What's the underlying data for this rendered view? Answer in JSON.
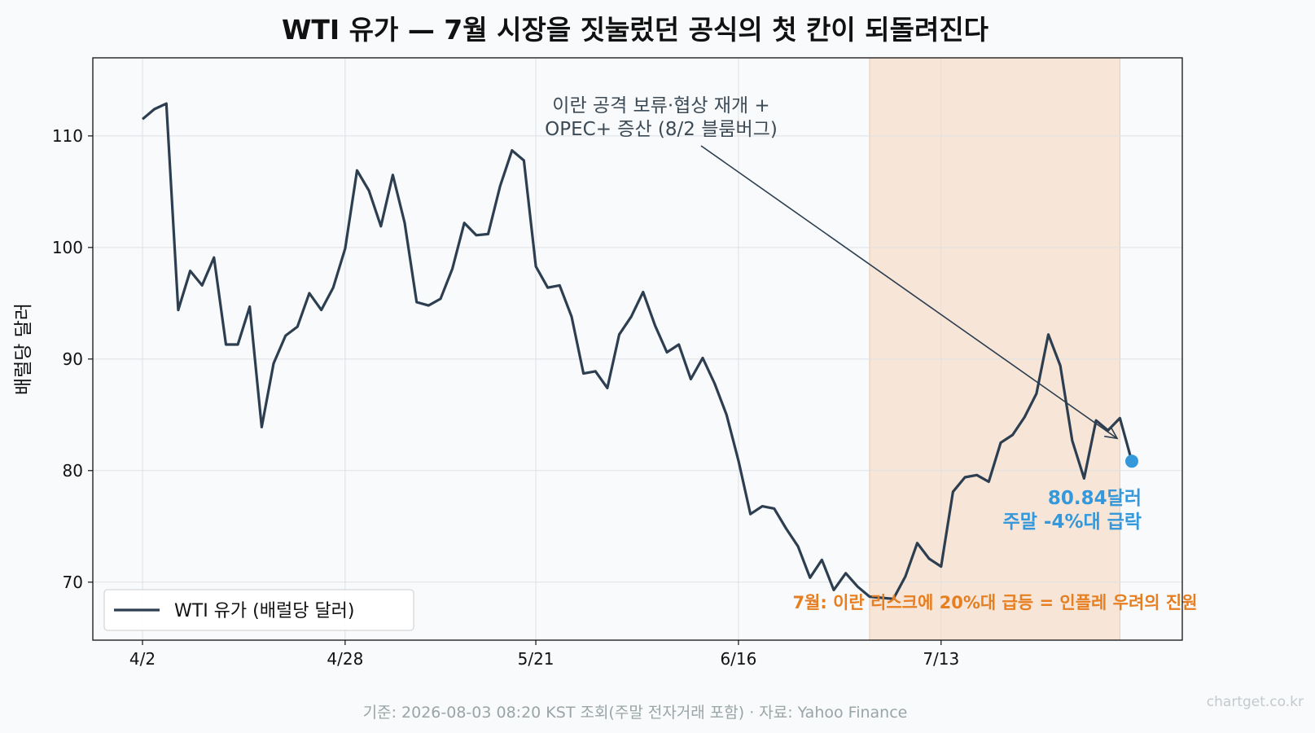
{
  "chart_data": {
    "type": "line",
    "title": "WTI 유가 — 7월 시장을 짓눌렀던 공식의 첫 칸이 되돌려진다",
    "ylabel": "배럴당 달러",
    "xlabel": "",
    "ylim": [
      64.8,
      117
    ],
    "y_ticks": [
      "70",
      "80",
      "90",
      "100",
      "110"
    ],
    "y_tick_values": [
      70,
      80,
      90,
      100,
      110
    ],
    "x_ticks": [
      "4/2",
      "4/28",
      "5/21",
      "6/16",
      "7/13"
    ],
    "x_tick_indices": [
      0,
      17,
      33,
      50,
      67
    ],
    "grid": true,
    "legend_position": "lower-left",
    "series": [
      {
        "name": "WTI 유가 (배럴당 달러)",
        "color": "#2c3e50",
        "values": [
          111.5,
          112.4,
          112.9,
          94.4,
          97.9,
          96.6,
          99.1,
          91.3,
          91.3,
          94.7,
          83.9,
          89.6,
          92.1,
          92.9,
          95.9,
          94.4,
          96.4,
          99.9,
          106.9,
          105.1,
          101.9,
          106.5,
          102.2,
          95.1,
          94.8,
          95.4,
          98.1,
          102.2,
          101.1,
          101.2,
          105.5,
          108.7,
          107.8,
          98.3,
          96.4,
          96.6,
          93.8,
          88.7,
          88.9,
          87.4,
          92.2,
          93.8,
          96.0,
          93.0,
          90.6,
          91.3,
          88.2,
          90.1,
          87.8,
          85.0,
          80.9,
          76.1,
          76.8,
          76.6,
          74.8,
          73.2,
          70.4,
          72.0,
          69.3,
          70.8,
          69.6,
          68.7,
          68.6,
          68.5,
          70.5,
          73.5,
          72.1,
          71.4,
          78.1,
          79.4,
          79.6,
          79.0,
          82.5,
          83.2,
          84.8,
          86.9,
          92.2,
          89.4,
          82.7,
          79.3,
          84.5,
          83.6,
          84.7,
          80.84
        ]
      }
    ],
    "highlight_band": {
      "from_index": 61,
      "to_index": 82,
      "color": "#f6dcc5"
    },
    "last_point": {
      "value": 80.84,
      "color": "#3498db"
    },
    "annotations": [
      {
        "lines": [
          "이란 공격 보류·협상 재개 +",
          "OPEC+ 증산 (8/2 블룸버그)"
        ],
        "color": "#3b4a55"
      },
      {
        "lines": [
          "80.84달러",
          "주말 -4%대 급락"
        ],
        "color": "#3498db"
      },
      {
        "text": "7월: 이란 리스크에 20%대 급등 = 인플레 우려의 진원",
        "color": "#e67e22"
      }
    ]
  },
  "footer": {
    "source": "기준: 2026-08-03 08:20 KST 조회(주말 전자거래 포함) · 자료: Yahoo Finance",
    "watermark": "chartget.co.kr"
  }
}
